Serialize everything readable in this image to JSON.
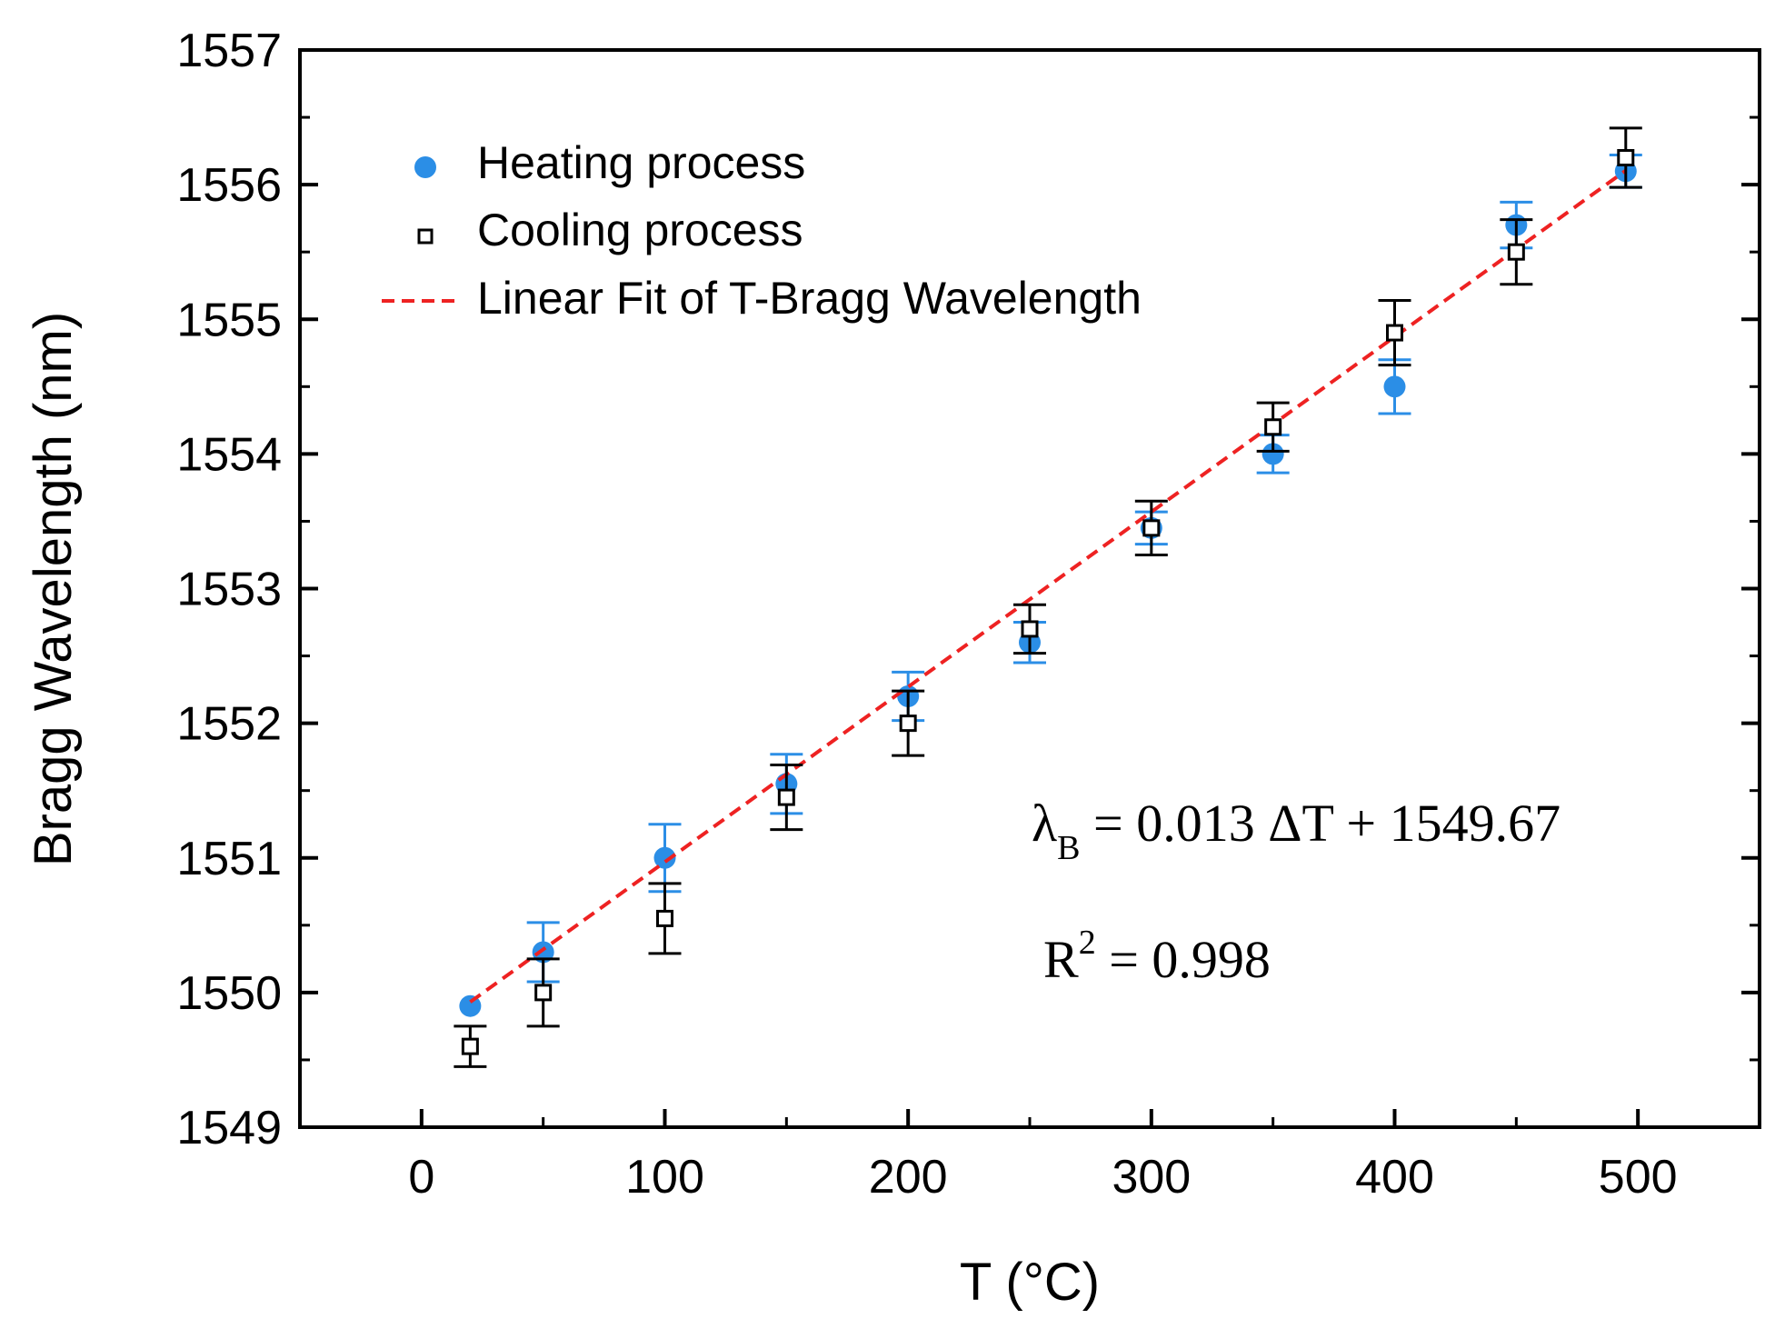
{
  "chart_data": {
    "type": "scatter",
    "title": "",
    "xlabel": "T (°C)",
    "ylabel": "Bragg Wavelength (nm)",
    "xlim": [
      -50,
      550
    ],
    "ylim": [
      1549,
      1557
    ],
    "xticks": [
      0,
      100,
      200,
      300,
      400,
      500
    ],
    "yticks": [
      1549,
      1550,
      1551,
      1552,
      1553,
      1554,
      1555,
      1556,
      1557
    ],
    "grid": false,
    "legend_position": "top-left",
    "series": [
      {
        "name": "Heating process",
        "marker": "filled-circle",
        "color": "#2b8ee6",
        "x": [
          20,
          50,
          100,
          150,
          200,
          250,
          300,
          350,
          400,
          450,
          495
        ],
        "y": [
          1549.9,
          1550.3,
          1551.0,
          1551.55,
          1552.2,
          1552.6,
          1553.45,
          1554.0,
          1554.5,
          1555.7,
          1556.1
        ],
        "err": [
          0.0,
          0.22,
          0.25,
          0.22,
          0.18,
          0.15,
          0.12,
          0.14,
          0.2,
          0.17,
          0.12
        ]
      },
      {
        "name": "Cooling process",
        "marker": "open-square",
        "color": "#000000",
        "x": [
          20,
          50,
          100,
          150,
          200,
          250,
          300,
          350,
          400,
          450,
          495
        ],
        "y": [
          1549.6,
          1550.0,
          1550.55,
          1551.45,
          1552.0,
          1552.7,
          1553.45,
          1554.2,
          1554.9,
          1555.5,
          1556.2
        ],
        "err": [
          0.15,
          0.25,
          0.26,
          0.24,
          0.24,
          0.18,
          0.2,
          0.18,
          0.24,
          0.24,
          0.22
        ]
      }
    ],
    "fit": {
      "name": "Linear Fit of T-Bragg Wavelength",
      "color": "#ee2222",
      "style": "dashed",
      "slope": 0.013,
      "intercept": 1549.67,
      "x_range": [
        20,
        495
      ]
    },
    "annotations": {
      "equation": {
        "lambda": "λ",
        "sub": "B",
        "rest": " = 0.013 ΔT + 1549.67"
      },
      "r2": {
        "base": "R",
        "sup": "2",
        "rest": " = 0.998"
      }
    }
  }
}
